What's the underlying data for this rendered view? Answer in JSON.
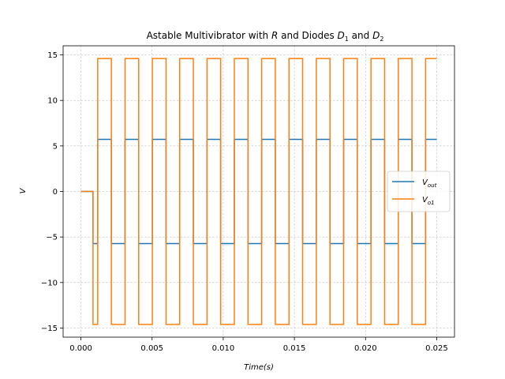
{
  "chart_data": {
    "type": "line",
    "title": {
      "prefix": "Astable Multivibrator with ",
      "r": "R",
      "mid": " and Diodes ",
      "d1": "D",
      "d1_sub": "1",
      "and": " and ",
      "d2": "D",
      "d2_sub": "2"
    },
    "xlabel": "Time(s)",
    "ylabel": "V",
    "xlim": [
      -0.00125,
      0.02625
    ],
    "ylim": [
      -16.0,
      16.0
    ],
    "xticks": [
      0.0,
      0.005,
      0.01,
      0.015,
      0.02,
      0.025
    ],
    "xtick_labels": [
      "0.000",
      "0.005",
      "0.010",
      "0.015",
      "0.020",
      "0.025"
    ],
    "yticks": [
      -15,
      -10,
      -5,
      0,
      5,
      10,
      15
    ],
    "ytick_labels": [
      "−15",
      "−10",
      "−5",
      "0",
      "5",
      "10",
      "15"
    ],
    "grid": true,
    "legend_position": "center-right",
    "signal": {
      "t_end": 0.025,
      "first_low_t": 0.00085,
      "first_high_t": 0.00118,
      "half_period": 0.00096
    },
    "series": [
      {
        "name": "V",
        "name_sub": "out",
        "color": "#1f77b4",
        "high": 5.72,
        "low": -5.72
      },
      {
        "name": "V",
        "name_sub": "o1",
        "color": "#ff7f0e",
        "high": 14.6,
        "low": -14.6
      }
    ]
  }
}
